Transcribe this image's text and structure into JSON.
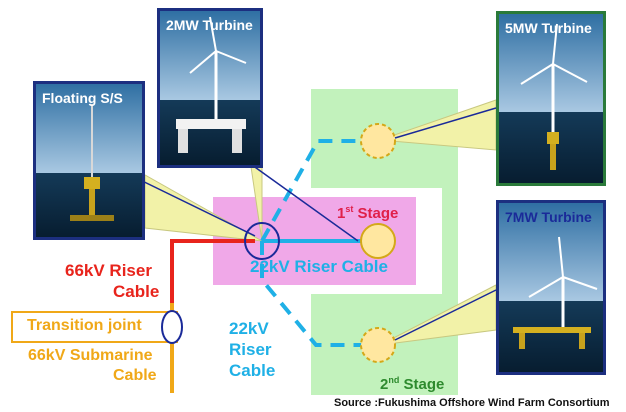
{
  "photos": {
    "floating_ss": {
      "title": "Floating S/S",
      "title_color": "#ffffff",
      "frame_color": "#1c2f80"
    },
    "turbine_2mw": {
      "title": "2MW Turbine",
      "title_color": "#ffffff",
      "frame_color": "#1c2f80"
    },
    "turbine_5mw": {
      "title": "5MW Turbine",
      "title_color": "#ffffff",
      "frame_color": "#2a7a3a"
    },
    "turbine_7mw": {
      "title": "7MW Turbine",
      "title_color": "#1a2a99",
      "frame_color": "#1c2f80"
    }
  },
  "stages": {
    "first": {
      "label": "1",
      "sup": "st",
      "suffix": " Stage",
      "color": "#e0204a",
      "fill": "#f0a8e8"
    },
    "second": {
      "label": "2",
      "sup": "nd",
      "suffix": " Stage",
      "color": "#2e8b2e",
      "fill": "#c2f2bc"
    }
  },
  "labels": {
    "riser_66kv_line1": "66kV Riser",
    "riser_66kv_line2": "Cable",
    "riser_22kv_center": "22kV Riser Cable",
    "riser_22kv_line1": "22kV",
    "riser_22kv_line2": "Riser",
    "riser_22kv_line3": "Cable",
    "transition_joint": "Transition joint",
    "submarine_line1": "66kV Submarine",
    "submarine_line2": "Cable",
    "source": "Source :Fukushima Offshore Wind Farm Consortium"
  },
  "colors": {
    "cable_66kv": "#e8241c",
    "cable_22kv": "#1fb0e6",
    "submarine": "#f0a818",
    "callout": "#f2f2a8",
    "turbine_node": "#ffe7a0"
  }
}
